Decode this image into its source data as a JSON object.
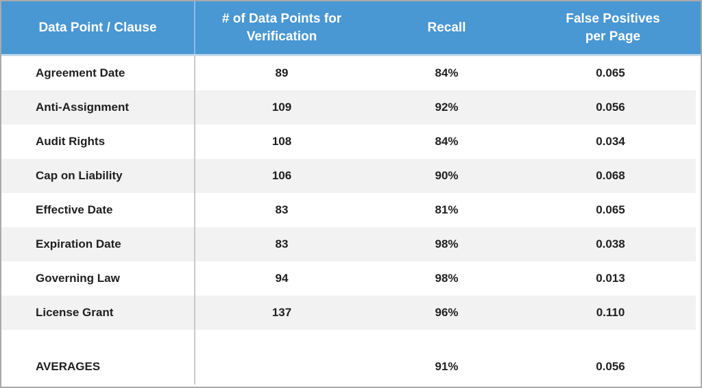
{
  "colors": {
    "header_background": "#4997d3",
    "header_underline": "#c3d9ee",
    "row_stripe": "#f2f2f2",
    "outer_border": "#a9a9ac",
    "column_divider": "#c9c9c9",
    "text": "#1f1f1f",
    "header_text": "#ffffff"
  },
  "chart_data": {
    "type": "table",
    "title": "",
    "columns": [
      "Data Point / Clause",
      "# of Data Points for Verification",
      "Recall",
      "False Positives per Page"
    ],
    "rows": [
      {
        "clause": "Agreement Date",
        "data_points": "89",
        "recall": "84%",
        "false_positives": "0.065"
      },
      {
        "clause": "Anti-Assignment",
        "data_points": "109",
        "recall": "92%",
        "false_positives": "0.056"
      },
      {
        "clause": "Audit Rights",
        "data_points": "108",
        "recall": "84%",
        "false_positives": "0.034"
      },
      {
        "clause": "Cap on Liability",
        "data_points": "106",
        "recall": "90%",
        "false_positives": "0.068"
      },
      {
        "clause": "Effective Date",
        "data_points": "83",
        "recall": "81%",
        "false_positives": "0.065"
      },
      {
        "clause": "Expiration Date",
        "data_points": "83",
        "recall": "98%",
        "false_positives": "0.038"
      },
      {
        "clause": "Governing Law",
        "data_points": "94",
        "recall": "98%",
        "false_positives": "0.013"
      },
      {
        "clause": "License Grant",
        "data_points": "137",
        "recall": "96%",
        "false_positives": "0.110"
      }
    ],
    "averages": {
      "label": "AVERAGES",
      "data_points": "",
      "recall": "91%",
      "false_positives": "0.056"
    }
  }
}
